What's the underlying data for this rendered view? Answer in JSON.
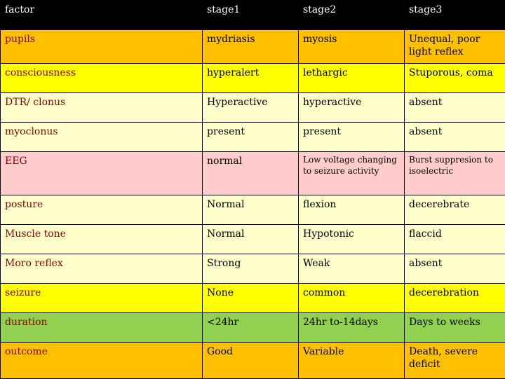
{
  "colors": {
    "header": "#000000",
    "orange": "#ffc000",
    "cream": "#ffffcc",
    "pink": "#ffcccc",
    "yellow": "#ffff00",
    "green": "#92d050"
  },
  "header": [
    "factor",
    "stage1",
    "stage2",
    "stage3"
  ],
  "rows": [
    {
      "cells": [
        "pupils",
        "mydriasis",
        "myosis",
        "Unequal, poor light reflex"
      ],
      "bg": "orange"
    },
    {
      "cells": [
        "consciousness",
        "hyperalert",
        "lethargic",
        "Stuporous, coma"
      ],
      "bg": "yellow"
    },
    {
      "cells": [
        "DTR/ clonus",
        "Hyperactive",
        "hyperactive",
        "absent"
      ],
      "bg": "cream"
    },
    {
      "cells": [
        "myoclonus",
        "present",
        "present",
        "absent"
      ],
      "bg": "cream"
    },
    {
      "cells": [
        "EEG",
        "normal",
        "Low voltage changing to seizure activity",
        "Burst suppresion to isoelectric"
      ],
      "bg": "pink"
    },
    {
      "cells": [
        "posture",
        "Normal",
        "flexion",
        "decerebrate"
      ],
      "bg": "cream"
    },
    {
      "cells": [
        "Muscle tone",
        "Normal",
        "Hypotonic",
        "flaccid"
      ],
      "bg": "cream"
    },
    {
      "cells": [
        "Moro reflex",
        "Strong",
        "Weak",
        "absent"
      ],
      "bg": "cream"
    },
    {
      "cells": [
        "seizure",
        "None",
        "common",
        "decerebration"
      ],
      "bg": "yellow"
    },
    {
      "cells": [
        "duration",
        "<24hr",
        "24hr to-14days",
        "Days to weeks"
      ],
      "bg": "green"
    },
    {
      "cells": [
        "outcome",
        "Good",
        "Variable",
        "Death, severe deficit"
      ],
      "bg": "orange"
    }
  ]
}
